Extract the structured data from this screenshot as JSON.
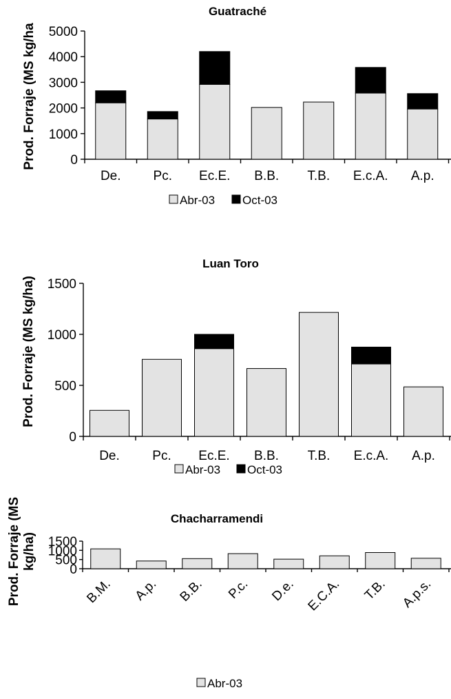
{
  "colors": {
    "Abr-03": "#e3e3e3",
    "Oct-03": "#000000"
  },
  "chart_data": [
    {
      "type": "bar",
      "stacked": true,
      "title": "Guatraché",
      "ylabel": "Prod. Forraje (MS kg/ha",
      "ylim": [
        0,
        5000
      ],
      "yticks": [
        0,
        1000,
        2000,
        3000,
        4000,
        5000
      ],
      "categories": [
        "De.",
        "Pc.",
        "Ec.E.",
        "B.B.",
        "T.B.",
        "E.c.A.",
        "A.p."
      ],
      "series": [
        {
          "name": "Abr-03",
          "values": [
            2200,
            1570,
            2920,
            2020,
            2230,
            2580,
            1960
          ]
        },
        {
          "name": "Oct-03",
          "values": [
            470,
            290,
            1280,
            0,
            0,
            1000,
            600
          ]
        }
      ],
      "legend": [
        "Abr-03",
        "Oct-03"
      ],
      "legend_position": "bottom"
    },
    {
      "type": "bar",
      "stacked": true,
      "title": "Luan Toro",
      "ylabel": "Prod. Forraje (MS kg/ha)",
      "ylim": [
        0,
        1500
      ],
      "yticks": [
        0,
        500,
        1000,
        1500
      ],
      "categories": [
        "De.",
        "Pc.",
        "Ec.E.",
        "B.B.",
        "T.B.",
        "E.c.A.",
        "A.p."
      ],
      "series": [
        {
          "name": "Abr-03",
          "values": [
            255,
            755,
            860,
            665,
            1215,
            710,
            485
          ]
        },
        {
          "name": "Oct-03",
          "values": [
            0,
            0,
            140,
            0,
            0,
            165,
            0
          ]
        }
      ],
      "legend": [
        "Abr-03",
        "Oct-03"
      ],
      "legend_position": "bottom"
    },
    {
      "type": "bar",
      "stacked": false,
      "title": "Chacharramendi",
      "ylabel": "Prod. Forraje (MS kg/ha)",
      "ylabel_lines": [
        "Prod. Forraje (MS",
        "kg/ha)"
      ],
      "ylim": [
        0,
        1500
      ],
      "yticks": [
        0,
        500,
        1000,
        1500
      ],
      "categories": [
        "B.M.",
        "A.p.",
        "B.B.",
        "P.c.",
        "D.e.",
        "E.C.A.",
        "T.B.",
        "A.p.s."
      ],
      "series": [
        {
          "name": "Abr-03",
          "values": [
            1080,
            420,
            550,
            820,
            520,
            700,
            880,
            570
          ]
        }
      ],
      "legend": [
        "Abr-03"
      ],
      "legend_position": "bottom"
    }
  ]
}
